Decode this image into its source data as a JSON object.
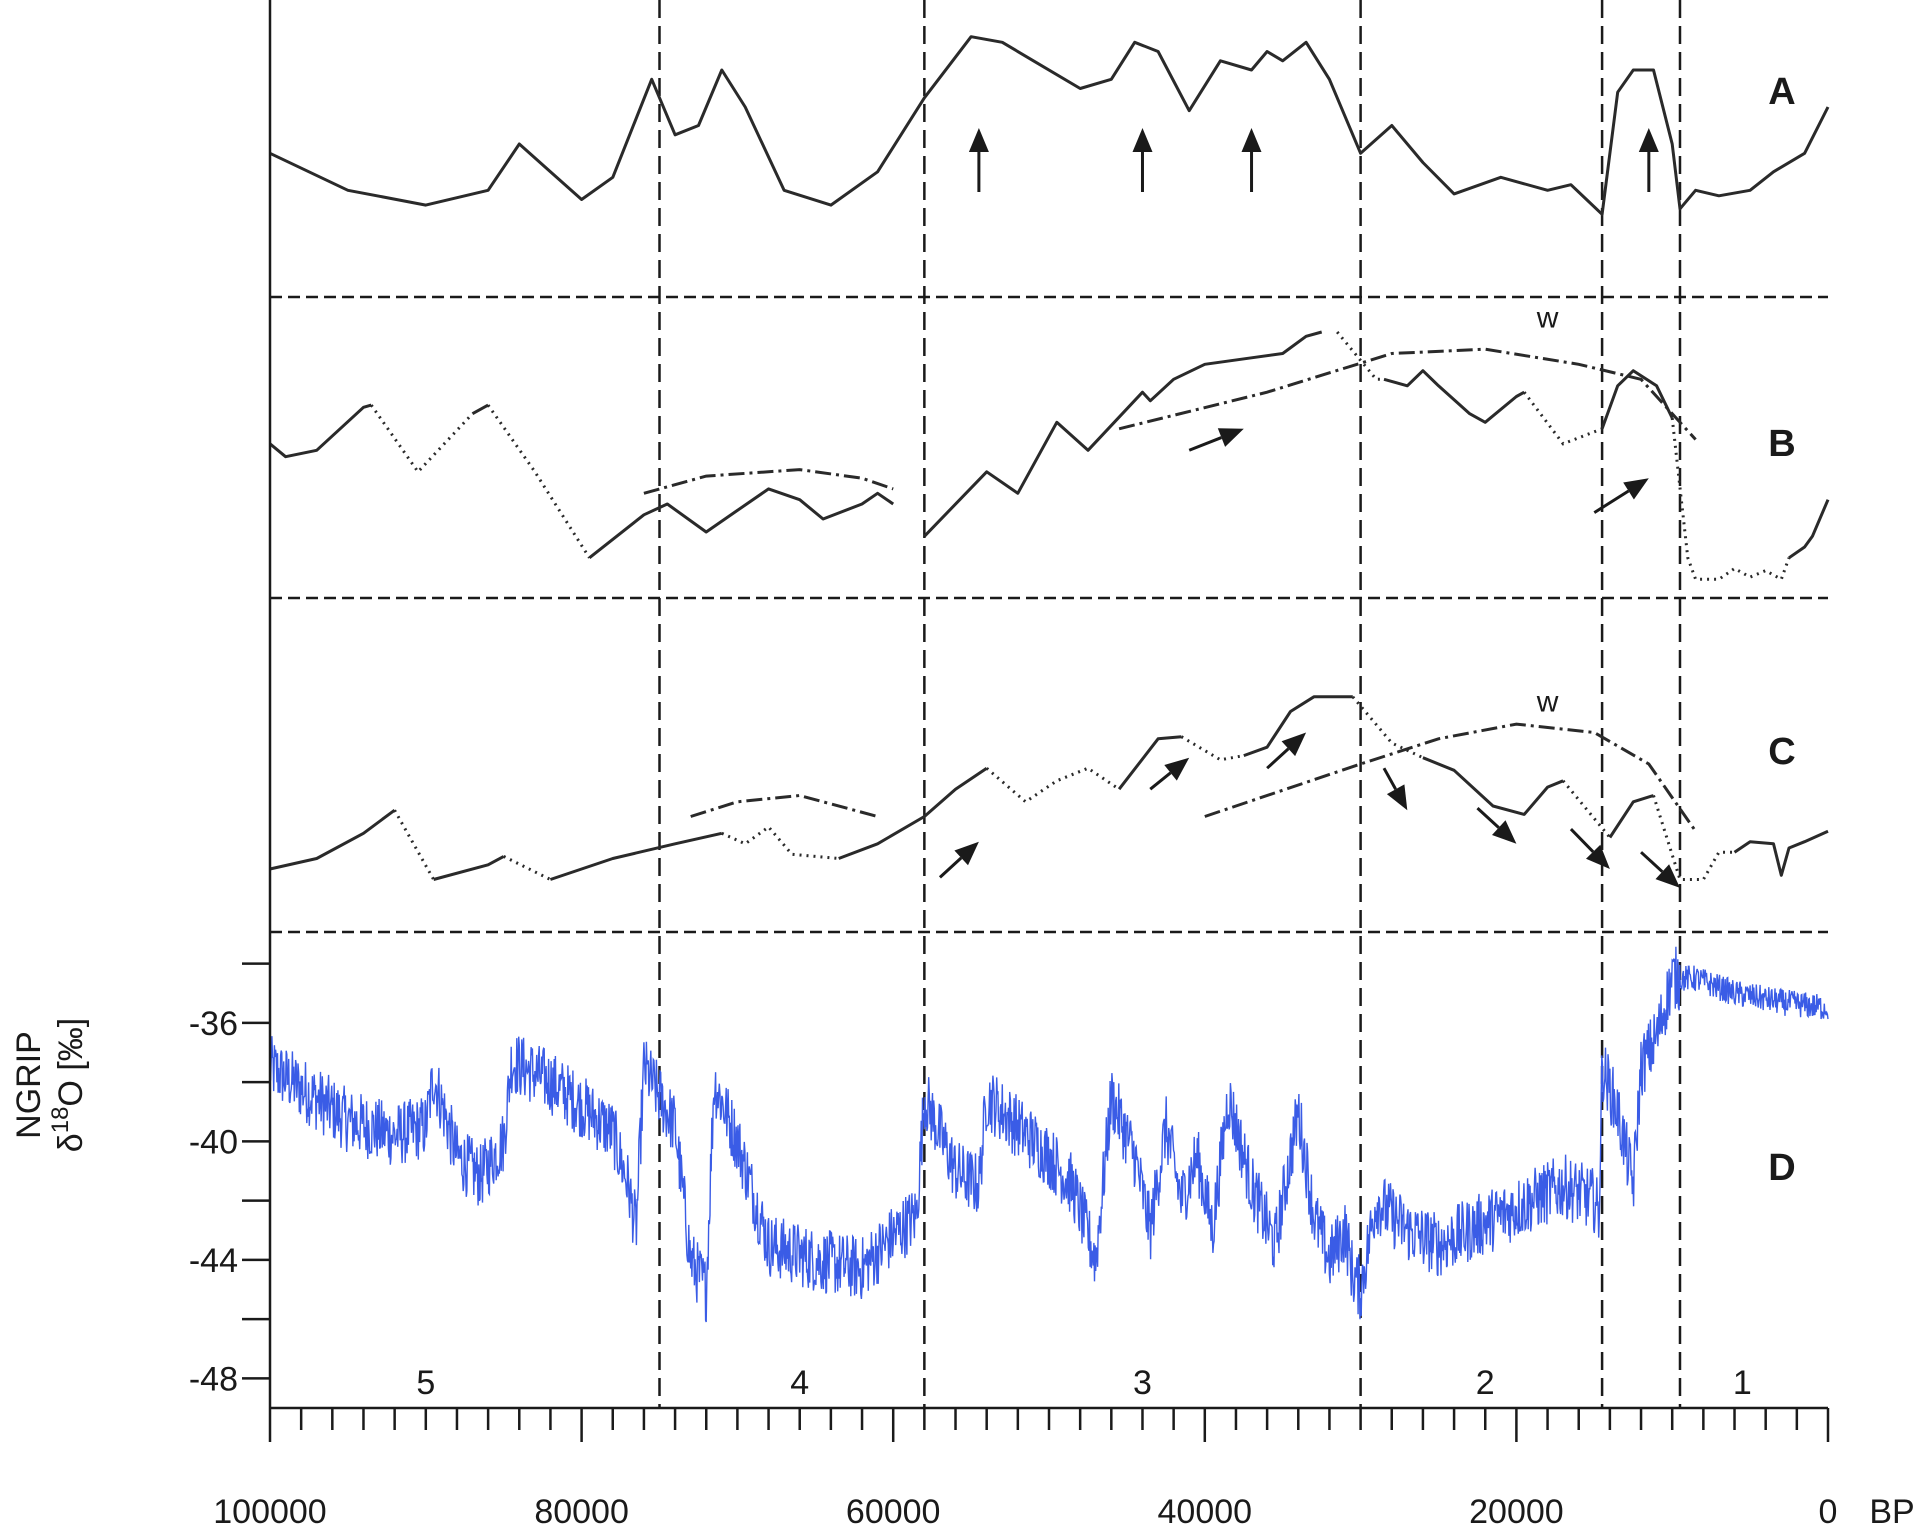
{
  "chart_data": {
    "type": "line",
    "x_unit": "BP",
    "x_range": [
      100000,
      0
    ],
    "x_tick_labels": [
      "100000",
      "80000",
      "60000",
      "40000",
      "20000",
      "0"
    ],
    "x_axis_unit_label": "BP",
    "panel_labels": [
      "A",
      "B",
      "C",
      "D"
    ],
    "curve_annotation": "w",
    "stage_boundaries": [
      75000,
      58000,
      30000,
      14500,
      9500
    ],
    "stages": [
      {
        "label": "5",
        "x": 90000
      },
      {
        "label": "4",
        "x": 66000
      },
      {
        "label": "3",
        "x": 44000
      },
      {
        "label": "2",
        "x": 22000
      },
      {
        "label": "1",
        "x": 5500
      }
    ],
    "panel_A": {
      "points": [
        [
          100000,
          0.55
        ],
        [
          95000,
          0.35
        ],
        [
          90000,
          0.27
        ],
        [
          86000,
          0.35
        ],
        [
          84000,
          0.6
        ],
        [
          82000,
          0.45
        ],
        [
          80000,
          0.3
        ],
        [
          78000,
          0.42
        ],
        [
          75500,
          0.95
        ],
        [
          74000,
          0.65
        ],
        [
          72500,
          0.7
        ],
        [
          71000,
          1.0
        ],
        [
          69500,
          0.8
        ],
        [
          67000,
          0.35
        ],
        [
          64000,
          0.27
        ],
        [
          61000,
          0.45
        ],
        [
          58000,
          0.85
        ],
        [
          55000,
          1.18
        ],
        [
          53000,
          1.15
        ],
        [
          51000,
          1.05
        ],
        [
          48000,
          0.9
        ],
        [
          46000,
          0.95
        ],
        [
          44500,
          1.15
        ],
        [
          43000,
          1.1
        ],
        [
          41000,
          0.78
        ],
        [
          39000,
          1.05
        ],
        [
          37000,
          1.0
        ],
        [
          36000,
          1.1
        ],
        [
          35000,
          1.05
        ],
        [
          33500,
          1.15
        ],
        [
          32000,
          0.95
        ],
        [
          30000,
          0.55
        ],
        [
          28000,
          0.7
        ],
        [
          26000,
          0.5
        ],
        [
          24000,
          0.33
        ],
        [
          21000,
          0.42
        ],
        [
          18000,
          0.35
        ],
        [
          16500,
          0.38
        ],
        [
          15500,
          0.3
        ],
        [
          14500,
          0.22
        ],
        [
          13500,
          0.88
        ],
        [
          12500,
          1.0
        ],
        [
          11200,
          1.0
        ],
        [
          10000,
          0.6
        ],
        [
          9500,
          0.25
        ],
        [
          8500,
          0.35
        ],
        [
          7000,
          0.32
        ],
        [
          5000,
          0.35
        ],
        [
          3500,
          0.45
        ],
        [
          1500,
          0.55
        ],
        [
          0,
          0.8
        ]
      ],
      "arrows_up_at": [
        54500,
        44000,
        37000,
        11500
      ]
    },
    "panel_B": {
      "solid_segments": [
        [
          [
            100000,
            0.68
          ],
          [
            99000,
            0.62
          ],
          [
            97000,
            0.65
          ],
          [
            94000,
            0.85
          ],
          [
            93500,
            0.86
          ]
        ],
        [
          [
            87000,
            0.82
          ],
          [
            86000,
            0.86
          ]
        ],
        [
          [
            79500,
            0.15
          ],
          [
            76000,
            0.35
          ],
          [
            74500,
            0.4
          ],
          [
            72000,
            0.27
          ],
          [
            70000,
            0.37
          ],
          [
            68000,
            0.47
          ],
          [
            66000,
            0.42
          ],
          [
            64500,
            0.33
          ],
          [
            62000,
            0.4
          ],
          [
            61000,
            0.45
          ],
          [
            60000,
            0.4
          ]
        ],
        [
          [
            58000,
            0.25
          ],
          [
            54000,
            0.55
          ],
          [
            52000,
            0.45
          ],
          [
            49500,
            0.78
          ],
          [
            47500,
            0.65
          ],
          [
            44000,
            0.92
          ],
          [
            43500,
            0.88
          ],
          [
            42000,
            0.98
          ],
          [
            40000,
            1.05
          ],
          [
            37000,
            1.08
          ],
          [
            35000,
            1.1
          ],
          [
            33500,
            1.18
          ],
          [
            32500,
            1.2
          ]
        ],
        [
          [
            28500,
            0.98
          ],
          [
            27000,
            0.95
          ],
          [
            26000,
            1.02
          ],
          [
            25000,
            0.95
          ],
          [
            23000,
            0.82
          ],
          [
            22000,
            0.78
          ],
          [
            20000,
            0.9
          ],
          [
            19500,
            0.92
          ]
        ],
        [
          [
            14500,
            0.75
          ],
          [
            13500,
            0.95
          ],
          [
            12500,
            1.02
          ],
          [
            11000,
            0.95
          ],
          [
            10000,
            0.8
          ]
        ],
        [
          [
            2500,
            0.15
          ],
          [
            1500,
            0.2
          ],
          [
            1000,
            0.25
          ],
          [
            0,
            0.42
          ]
        ]
      ],
      "dotted_segments": [
        [
          [
            93500,
            0.86
          ],
          [
            90500,
            0.55
          ],
          [
            87000,
            0.82
          ]
        ],
        [
          [
            86000,
            0.86
          ],
          [
            83000,
            0.55
          ],
          [
            79500,
            0.15
          ]
        ],
        [
          [
            31500,
            1.2
          ],
          [
            29000,
            0.98
          ],
          [
            28500,
            0.98
          ]
        ],
        [
          [
            19500,
            0.92
          ],
          [
            17000,
            0.68
          ],
          [
            14500,
            0.75
          ]
        ],
        [
          [
            10000,
            0.8
          ],
          [
            9000,
            0.15
          ],
          [
            8500,
            0.05
          ],
          [
            7000,
            0.05
          ],
          [
            6000,
            0.1
          ],
          [
            5000,
            0.06
          ],
          [
            4000,
            0.09
          ],
          [
            3000,
            0.05
          ],
          [
            2500,
            0.15
          ]
        ]
      ],
      "dashdot_segments": [
        [
          [
            76000,
            0.45
          ],
          [
            72000,
            0.53
          ],
          [
            66000,
            0.56
          ],
          [
            62000,
            0.52
          ],
          [
            60000,
            0.47
          ]
        ],
        [
          [
            45500,
            0.75
          ],
          [
            36000,
            0.92
          ],
          [
            28000,
            1.1
          ],
          [
            22000,
            1.12
          ],
          [
            16000,
            1.05
          ],
          [
            12000,
            0.98
          ],
          [
            8500,
            0.7
          ]
        ]
      ],
      "arrows": [
        [
          [
            41000,
            0.65
          ],
          [
            37500,
            0.75
          ]
        ],
        [
          [
            15000,
            0.36
          ],
          [
            11500,
            0.52
          ]
        ]
      ],
      "w_at": [
        18000,
        1.22
      ]
    },
    "panel_C": {
      "solid_segments": [
        [
          [
            100000,
            0.1
          ],
          [
            97000,
            0.15
          ],
          [
            94000,
            0.27
          ],
          [
            92000,
            0.38
          ]
        ],
        [
          [
            89500,
            0.05
          ],
          [
            86000,
            0.12
          ],
          [
            85000,
            0.16
          ]
        ],
        [
          [
            82000,
            0.05
          ],
          [
            78000,
            0.15
          ],
          [
            74000,
            0.22
          ],
          [
            71000,
            0.27
          ]
        ],
        [
          [
            63500,
            0.15
          ],
          [
            61000,
            0.22
          ],
          [
            58000,
            0.35
          ],
          [
            56000,
            0.48
          ],
          [
            54000,
            0.58
          ]
        ],
        [
          [
            45500,
            0.48
          ],
          [
            43000,
            0.72
          ],
          [
            41500,
            0.73
          ]
        ],
        [
          [
            37500,
            0.64
          ],
          [
            36000,
            0.68
          ],
          [
            34500,
            0.85
          ],
          [
            33000,
            0.92
          ],
          [
            30500,
            0.92
          ]
        ],
        [
          [
            26000,
            0.63
          ],
          [
            24000,
            0.57
          ],
          [
            21500,
            0.4
          ],
          [
            19500,
            0.36
          ],
          [
            18000,
            0.49
          ],
          [
            17000,
            0.52
          ]
        ],
        [
          [
            14000,
            0.25
          ],
          [
            12500,
            0.42
          ],
          [
            11200,
            0.45
          ]
        ],
        [
          [
            6000,
            0.18
          ],
          [
            5000,
            0.23
          ],
          [
            3500,
            0.22
          ],
          [
            3000,
            0.07
          ],
          [
            2500,
            0.2
          ],
          [
            1500,
            0.23
          ],
          [
            0,
            0.28
          ]
        ]
      ],
      "dotted_segments": [
        [
          [
            92000,
            0.38
          ],
          [
            89500,
            0.05
          ]
        ],
        [
          [
            85000,
            0.16
          ],
          [
            82000,
            0.05
          ]
        ],
        [
          [
            71000,
            0.27
          ],
          [
            69500,
            0.22
          ],
          [
            68000,
            0.3
          ],
          [
            66500,
            0.17
          ],
          [
            63500,
            0.15
          ]
        ],
        [
          [
            54000,
            0.58
          ],
          [
            51500,
            0.42
          ],
          [
            49500,
            0.52
          ],
          [
            47500,
            0.58
          ],
          [
            45500,
            0.48
          ]
        ],
        [
          [
            41500,
            0.73
          ],
          [
            39000,
            0.62
          ],
          [
            37500,
            0.64
          ]
        ],
        [
          [
            30500,
            0.92
          ],
          [
            28000,
            0.7
          ],
          [
            26000,
            0.63
          ]
        ],
        [
          [
            17000,
            0.52
          ],
          [
            14000,
            0.25
          ]
        ],
        [
          [
            11200,
            0.45
          ],
          [
            9500,
            0.05
          ],
          [
            8000,
            0.05
          ],
          [
            7000,
            0.18
          ],
          [
            6000,
            0.18
          ]
        ]
      ],
      "dashdot_segments": [
        [
          [
            73000,
            0.35
          ],
          [
            70000,
            0.42
          ],
          [
            66000,
            0.45
          ],
          [
            61000,
            0.35
          ]
        ],
        [
          [
            40000,
            0.35
          ],
          [
            30000,
            0.6
          ],
          [
            25000,
            0.72
          ],
          [
            20000,
            0.79
          ],
          [
            15000,
            0.75
          ],
          [
            11500,
            0.6
          ],
          [
            8500,
            0.28
          ]
        ]
      ],
      "arrows": [
        [
          [
            57000,
            0.06
          ],
          [
            54500,
            0.23
          ]
        ],
        [
          [
            43500,
            0.48
          ],
          [
            41000,
            0.63
          ]
        ],
        [
          [
            36000,
            0.58
          ],
          [
            33500,
            0.75
          ]
        ],
        [
          [
            28500,
            0.58
          ],
          [
            27000,
            0.38
          ]
        ],
        [
          [
            22500,
            0.39
          ],
          [
            20000,
            0.22
          ]
        ],
        [
          [
            16500,
            0.29
          ],
          [
            14000,
            0.1
          ]
        ],
        [
          [
            12000,
            0.18
          ],
          [
            9500,
            0.01
          ]
        ]
      ],
      "w_at": [
        18000,
        0.85
      ]
    },
    "panel_D": {
      "series_name": "",
      "y_tick_labels": [
        "-36",
        "-40",
        "-44",
        "-48"
      ],
      "y_range": [
        -49,
        -33
      ],
      "y_axis_label_line1": "NGRIP",
      "y_axis_label_line2_prefix": "δ",
      "y_axis_label_line2_sup": "18",
      "y_axis_label_line2_suffix": "O [‰]",
      "trend": [
        [
          100000,
          -37.5
        ],
        [
          98000,
          -38.2
        ],
        [
          95000,
          -39.3
        ],
        [
          92000,
          -39.8
        ],
        [
          90000,
          -39.5
        ],
        [
          89500,
          -37.8
        ],
        [
          88000,
          -40.5
        ],
        [
          86500,
          -41.2
        ],
        [
          85000,
          -40.0
        ],
        [
          84500,
          -37.3
        ],
        [
          82000,
          -38.0
        ],
        [
          80000,
          -38.8
        ],
        [
          78000,
          -39.7
        ],
        [
          77000,
          -41.5
        ],
        [
          76500,
          -43.0
        ],
        [
          76000,
          -37.5
        ],
        [
          74000,
          -39.5
        ],
        [
          73000,
          -44.0
        ],
        [
          72000,
          -45.0
        ],
        [
          71500,
          -38.0
        ],
        [
          70000,
          -40.0
        ],
        [
          68000,
          -43.5
        ],
        [
          65000,
          -44.0
        ],
        [
          62000,
          -44.3
        ],
        [
          60000,
          -43.2
        ],
        [
          58500,
          -42.5
        ],
        [
          58000,
          -38.5
        ],
        [
          56000,
          -41.0
        ],
        [
          54500,
          -41.5
        ],
        [
          54000,
          -38.5
        ],
        [
          52000,
          -39.5
        ],
        [
          50000,
          -40.5
        ],
        [
          48500,
          -41.5
        ],
        [
          47000,
          -44.0
        ],
        [
          46000,
          -38.5
        ],
        [
          44500,
          -40.5
        ],
        [
          43500,
          -43.0
        ],
        [
          42500,
          -39.5
        ],
        [
          41500,
          -42.0
        ],
        [
          40500,
          -40.5
        ],
        [
          39500,
          -43.0
        ],
        [
          38500,
          -38.5
        ],
        [
          37000,
          -41.5
        ],
        [
          35500,
          -43.5
        ],
        [
          34000,
          -39.0
        ],
        [
          33000,
          -42.5
        ],
        [
          32000,
          -44.0
        ],
        [
          31000,
          -43.0
        ],
        [
          30500,
          -44.5
        ],
        [
          30000,
          -45.0
        ],
        [
          29000,
          -42.0
        ],
        [
          27000,
          -43.0
        ],
        [
          25000,
          -43.5
        ],
        [
          23000,
          -43.0
        ],
        [
          21000,
          -42.5
        ],
        [
          19000,
          -42.0
        ],
        [
          17000,
          -41.5
        ],
        [
          15000,
          -42.0
        ],
        [
          14700,
          -42.5
        ],
        [
          14500,
          -37.5
        ],
        [
          13500,
          -39.0
        ],
        [
          12500,
          -41.5
        ],
        [
          12000,
          -37.5
        ],
        [
          11000,
          -36.5
        ],
        [
          10000,
          -34.5
        ],
        [
          8500,
          -34.5
        ],
        [
          6000,
          -35.0
        ],
        [
          3000,
          -35.3
        ],
        [
          0,
          -35.5
        ]
      ]
    }
  }
}
